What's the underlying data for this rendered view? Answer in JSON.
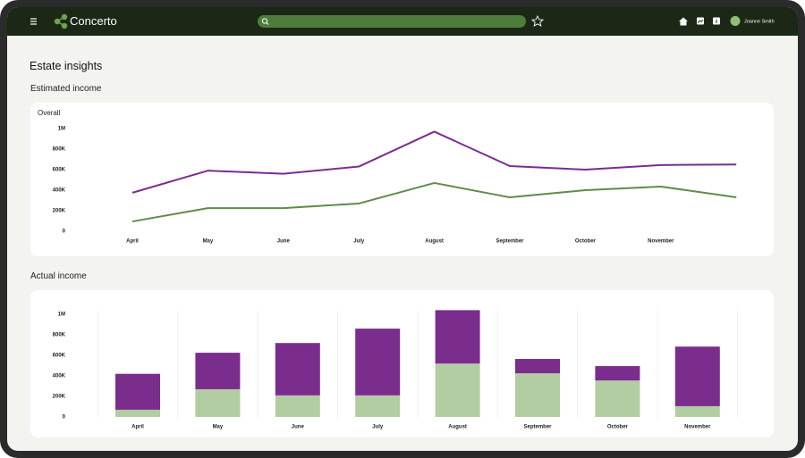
{
  "header": {
    "brand": "Concerto",
    "user": "Joanne Smith"
  },
  "page": {
    "title": "Estate insights"
  },
  "chart_data": [
    {
      "type": "line",
      "title": "Estimated income",
      "subtitle": "Overall",
      "categories": [
        "April",
        "May",
        "June",
        "July",
        "August",
        "September",
        "October",
        "November",
        null
      ],
      "series": [
        {
          "color": "#7b2d8e",
          "values": [
            375000,
            590000,
            560000,
            630000,
            970000,
            635000,
            600000,
            645000,
            650000
          ]
        },
        {
          "color": "#5e8c4a",
          "values": [
            95000,
            225000,
            225000,
            270000,
            470000,
            330000,
            400000,
            435000,
            330000
          ]
        }
      ],
      "ylim": [
        0,
        1000000
      ],
      "yticks": [
        0,
        {
          "value": 200000,
          "label": "200K"
        },
        {
          "value": 400000,
          "label": "400K"
        },
        {
          "value": 600000,
          "label": "600K"
        },
        {
          "value": 800000,
          "label": "800K"
        },
        {
          "value": 1000000,
          "label": "1M"
        }
      ]
    },
    {
      "type": "stacked-bar",
      "title": "Actual income",
      "categories": [
        "April",
        "May",
        "June",
        "July",
        "August",
        "September",
        "October",
        "November"
      ],
      "series": [
        {
          "color": "#b1cda1",
          "values": [
            70000,
            270000,
            210000,
            210000,
            520000,
            425000,
            355000,
            105000
          ]
        },
        {
          "color": "#7b2d8e",
          "values": [
            350000,
            355000,
            510000,
            650000,
            520000,
            140000,
            140000,
            580000
          ]
        }
      ],
      "ylim": [
        0,
        1000000
      ],
      "yticks": [
        0,
        {
          "value": 200000,
          "label": "200K"
        },
        {
          "value": 400000,
          "label": "400K"
        },
        {
          "value": 600000,
          "label": "600K"
        },
        {
          "value": 800000,
          "label": "800K"
        },
        {
          "value": 1000000,
          "label": "1M"
        }
      ]
    }
  ]
}
